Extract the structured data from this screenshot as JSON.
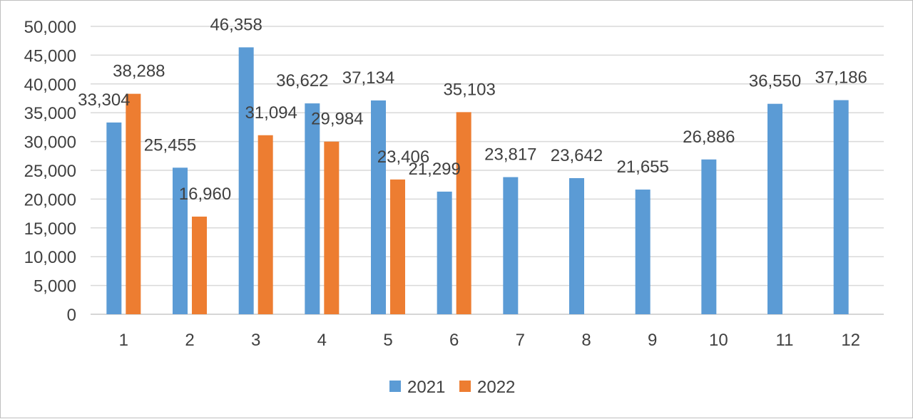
{
  "chart_data": {
    "type": "bar",
    "categories": [
      "1",
      "2",
      "3",
      "4",
      "5",
      "6",
      "7",
      "8",
      "9",
      "10",
      "11",
      "12"
    ],
    "series": [
      {
        "name": "2021",
        "color": "#5b9bd5",
        "values": [
          33304,
          25455,
          46358,
          36622,
          37134,
          21299,
          23817,
          23642,
          21655,
          26886,
          36550,
          37186
        ],
        "labels": [
          "33,304",
          "25,455",
          "46,358",
          "36,622",
          "37,134",
          "21,299",
          "23,817",
          "23,642",
          "21,655",
          "26,886",
          "36,550",
          "37,186"
        ]
      },
      {
        "name": "2022",
        "color": "#ed7d31",
        "values": [
          38288,
          16960,
          31094,
          29984,
          23406,
          35103,
          null,
          null,
          null,
          null,
          null,
          null
        ],
        "labels": [
          "38,288",
          "16,960",
          "31,094",
          "29,984",
          "23,406",
          "35,103",
          null,
          null,
          null,
          null,
          null,
          null
        ]
      }
    ],
    "yticks": [
      0,
      5000,
      10000,
      15000,
      20000,
      25000,
      30000,
      35000,
      40000,
      45000,
      50000
    ],
    "ytick_labels": [
      "0",
      "5,000",
      "10,000",
      "15,000",
      "20,000",
      "25,000",
      "30,000",
      "35,000",
      "40,000",
      "45,000",
      "50,000"
    ],
    "ylim": [
      0,
      50000
    ],
    "title": "",
    "xlabel": "",
    "ylabel": "",
    "grid": true,
    "legend_position": "bottom"
  }
}
